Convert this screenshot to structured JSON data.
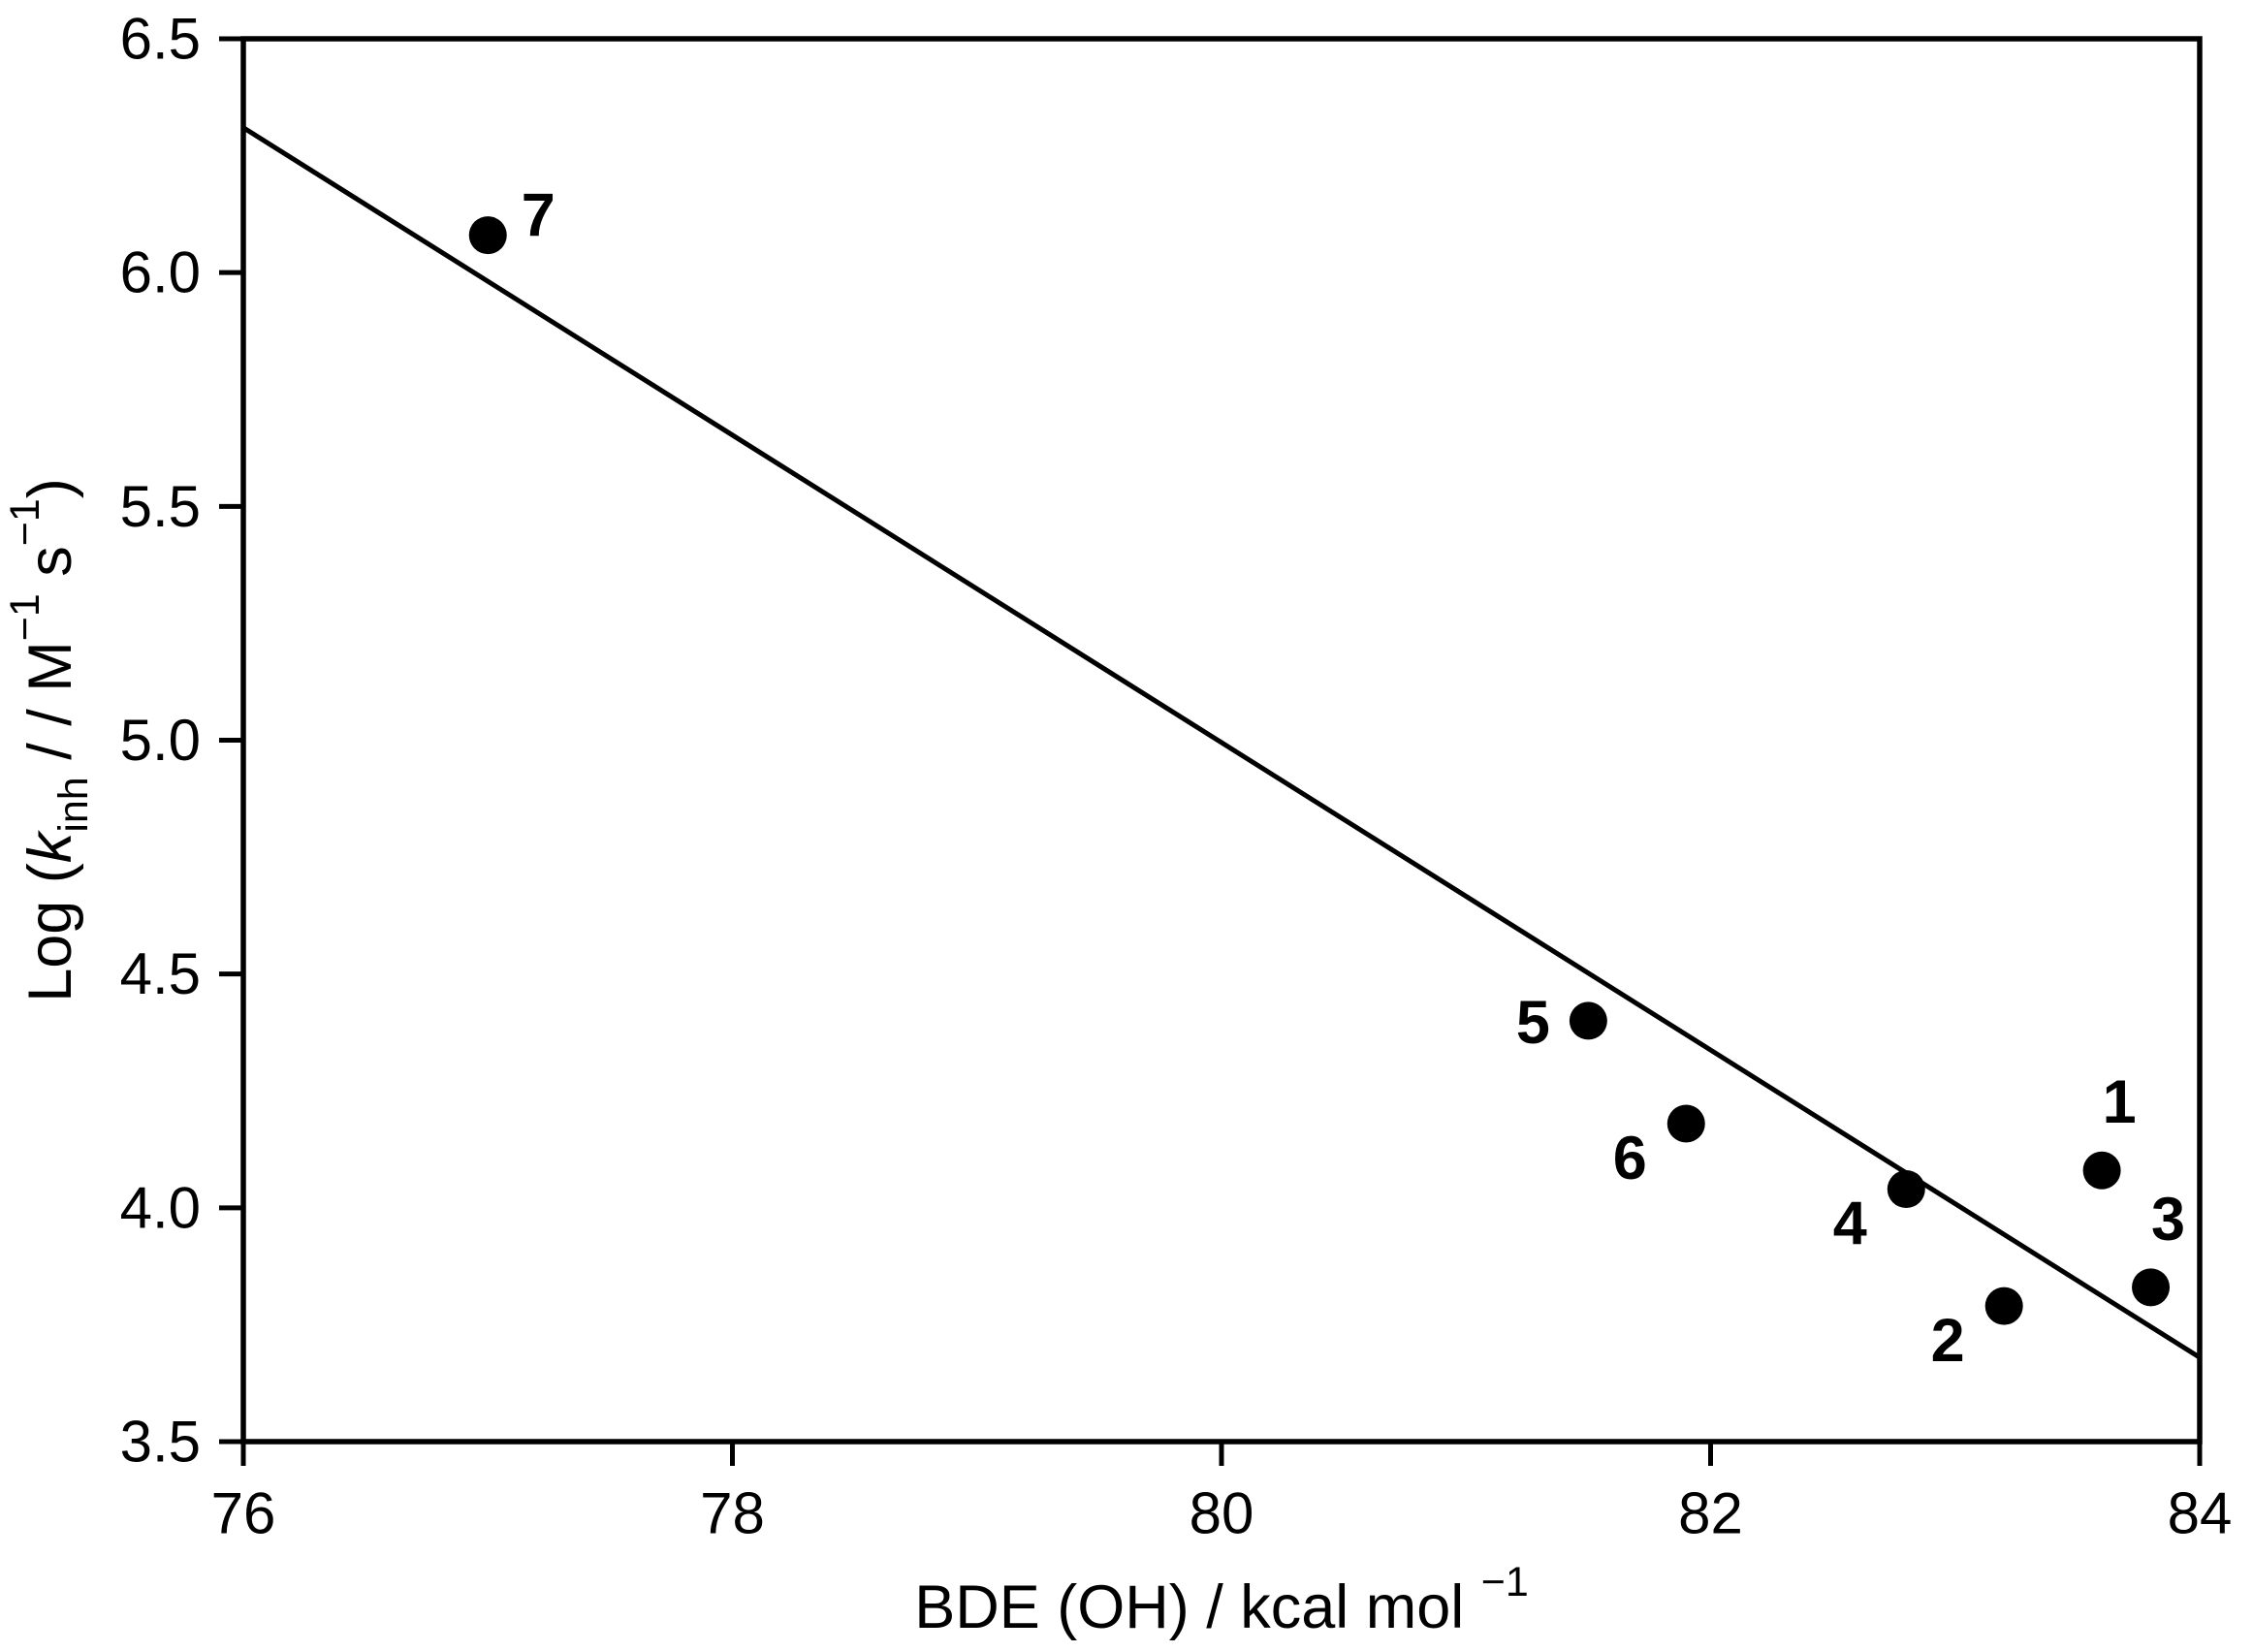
{
  "page": {
    "background_color": "#ffffff",
    "foreground_color": "#000000"
  },
  "chart_data": {
    "type": "scatter",
    "title": "",
    "xlabel_text": "BDE (OH) / kcal mol −1",
    "ylabel_text": "Log (k_inh / / M−1 s−1)",
    "xlabel_segments": [
      {
        "t": "BDE (OH) / kcal mol ",
        "style": "normal"
      },
      {
        "t": "−1",
        "style": "sup"
      }
    ],
    "ylabel_segments": [
      {
        "t": "Log (",
        "style": "normal"
      },
      {
        "t": "k",
        "style": "italic"
      },
      {
        "t": "inh",
        "style": "sub"
      },
      {
        "t": " /  / M",
        "style": "normal"
      },
      {
        "t": "−1",
        "style": "sup"
      },
      {
        "t": " s",
        "style": "normal"
      },
      {
        "t": "−1",
        "style": "sup"
      },
      {
        "t": ")",
        "style": "normal"
      }
    ],
    "xlim": [
      76,
      84
    ],
    "ylim": [
      3.5,
      6.5
    ],
    "x_ticks": [
      {
        "value": 76,
        "label": "76"
      },
      {
        "value": 78,
        "label": "78"
      },
      {
        "value": 80,
        "label": "80"
      },
      {
        "value": 82,
        "label": "82"
      },
      {
        "value": 84,
        "label": "84"
      }
    ],
    "y_ticks": [
      {
        "value": 6.5,
        "label": "6.5"
      },
      {
        "value": 6.0,
        "label": "6.0"
      },
      {
        "value": 5.5,
        "label": "5.5"
      },
      {
        "value": 5.0,
        "label": "5.0"
      },
      {
        "value": 4.5,
        "label": "4.5"
      },
      {
        "value": 4.0,
        "label": "4.0"
      },
      {
        "value": 3.5,
        "label": "3.5"
      }
    ],
    "grid": false,
    "legend": false,
    "marker_color": "#000000",
    "line_color": "#000000",
    "points": [
      {
        "label": "1",
        "x": 83.6,
        "y": 4.08,
        "label_side": "above"
      },
      {
        "label": "2",
        "x": 83.2,
        "y": 3.79,
        "label_side": "below-left"
      },
      {
        "label": "3",
        "x": 83.8,
        "y": 3.83,
        "label_side": "above"
      },
      {
        "label": "4",
        "x": 82.8,
        "y": 4.04,
        "label_side": "below-left"
      },
      {
        "label": "5",
        "x": 81.5,
        "y": 4.4,
        "label_side": "left"
      },
      {
        "label": "6",
        "x": 81.9,
        "y": 4.18,
        "label_side": "below-left"
      },
      {
        "label": "7",
        "x": 77.0,
        "y": 6.08,
        "label_side": "right"
      }
    ],
    "trend_line": {
      "x1": 76.0,
      "y1": 6.31,
      "x2": 84.0,
      "y2": 3.68
    }
  }
}
